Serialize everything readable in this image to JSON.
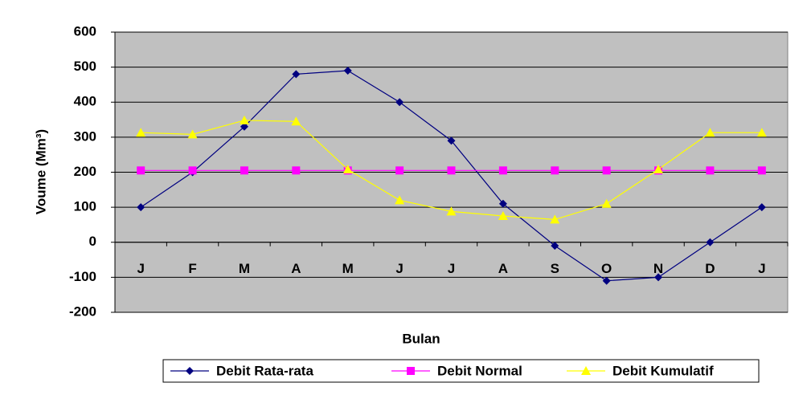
{
  "chart_data": {
    "type": "line",
    "x_label": "Bulan",
    "y_label": "Voume (Mm³)",
    "categories": [
      "J",
      "F",
      "M",
      "A",
      "M",
      "J",
      "J",
      "A",
      "S",
      "O",
      "N",
      "D",
      "J"
    ],
    "series": [
      {
        "name": "Debit Rata-rata",
        "color": "#000080",
        "marker": "diamond",
        "values": [
          100,
          200,
          330,
          480,
          490,
          400,
          290,
          110,
          -10,
          -110,
          -100,
          0,
          100
        ]
      },
      {
        "name": "Debit Normal",
        "color": "#ff00ff",
        "marker": "square",
        "values": [
          205,
          205,
          205,
          205,
          205,
          205,
          205,
          205,
          205,
          205,
          205,
          205,
          205
        ]
      },
      {
        "name": "Debit Kumulatif",
        "color": "#ffff00",
        "marker": "triangle",
        "values": [
          313,
          308,
          348,
          345,
          208,
          120,
          88,
          75,
          65,
          110,
          208,
          313,
          313
        ]
      }
    ],
    "ylim": [
      -200,
      600
    ],
    "yticks": [
      -200,
      -100,
      0,
      100,
      200,
      300,
      400,
      500,
      600
    ],
    "grid": true,
    "legend": "bottom"
  }
}
